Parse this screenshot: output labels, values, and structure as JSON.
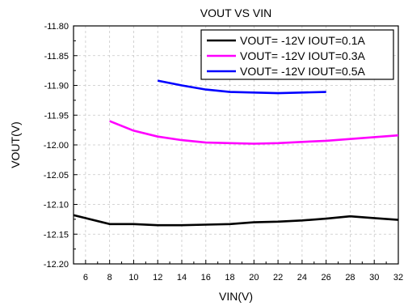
{
  "chart_data": {
    "type": "line",
    "title": "VOUT VS VIN",
    "xlabel": "VIN(V)",
    "ylabel": "VOUT(V)",
    "xlim": [
      5,
      32
    ],
    "ylim": [
      -12.2,
      -11.8
    ],
    "x_ticks": [
      "6",
      "8",
      "10",
      "12",
      "14",
      "16",
      "18",
      "20",
      "22",
      "24",
      "26",
      "28",
      "30",
      "32"
    ],
    "y_ticks": [
      "-11.80",
      "-11.85",
      "-11.90",
      "-11.95",
      "-12.00",
      "-12.05",
      "-12.10",
      "-12.15",
      "-12.20"
    ],
    "grid": true,
    "legend_position": "top-right",
    "series": [
      {
        "name": "VOUT= -12V IOUT=0.1A",
        "color": "#000000",
        "x": [
          5,
          8,
          10,
          12,
          14,
          16,
          18,
          20,
          22,
          24,
          26,
          28,
          30,
          32
        ],
        "y": [
          -12.118,
          -12.133,
          -12.133,
          -12.135,
          -12.135,
          -12.134,
          -12.133,
          -12.13,
          -12.129,
          -12.127,
          -12.124,
          -12.12,
          -12.123,
          -12.126
        ]
      },
      {
        "name": "VOUT= -12V IOUT=0.3A",
        "color": "#ff00ff",
        "x": [
          8,
          10,
          12,
          14,
          16,
          18,
          20,
          22,
          24,
          26,
          28,
          30,
          32
        ],
        "y": [
          -11.96,
          -11.976,
          -11.986,
          -11.992,
          -11.996,
          -11.997,
          -11.998,
          -11.997,
          -11.995,
          -11.993,
          -11.99,
          -11.987,
          -11.984
        ]
      },
      {
        "name": "VOUT= -12V IOUT=0.5A",
        "color": "#0000ff",
        "x": [
          12,
          14,
          16,
          18,
          20,
          22,
          24,
          26
        ],
        "y": [
          -11.892,
          -11.9,
          -11.907,
          -11.911,
          -11.912,
          -11.913,
          -11.912,
          -11.911
        ]
      }
    ]
  }
}
